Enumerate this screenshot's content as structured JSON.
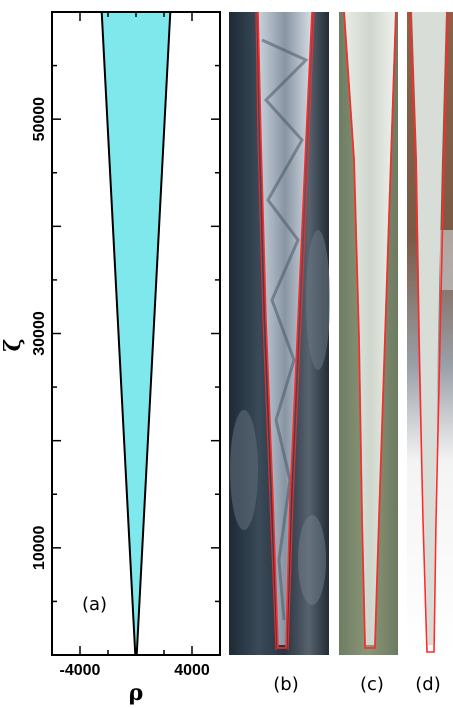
{
  "figure": {
    "panel_a_label": "(a)",
    "panel_b_label": "(b)",
    "panel_c_label": "(c)",
    "panel_d_label": "(d)",
    "colors": {
      "fill": "#7fe8ec",
      "outline": "#000000",
      "trace": "#ff2a2a"
    },
    "photo_b": "icicle-photo-dark-background",
    "photo_c": "icicle-photo-green-background",
    "photo_d": "icicle-photo-house-background"
  },
  "chart_data": {
    "type": "area",
    "title": "",
    "xlabel": "ρ",
    "ylabel": "ζ",
    "xlim": [
      -6000,
      6000
    ],
    "ylim": [
      0,
      60000
    ],
    "xticks": [
      -4000,
      4000
    ],
    "xtick_labels": [
      "-4000",
      "4000"
    ],
    "yticks": [
      10000,
      30000,
      50000
    ],
    "ytick_labels": [
      "10000",
      "30000",
      "50000"
    ],
    "grid": false,
    "series": [
      {
        "values_left": [
          [
            -50,
            0
          ],
          [
            -2450,
            60000
          ]
        ],
        "values_right": [
          [
            50,
            0
          ],
          [
            2450,
            60000
          ]
        ]
      }
    ]
  }
}
